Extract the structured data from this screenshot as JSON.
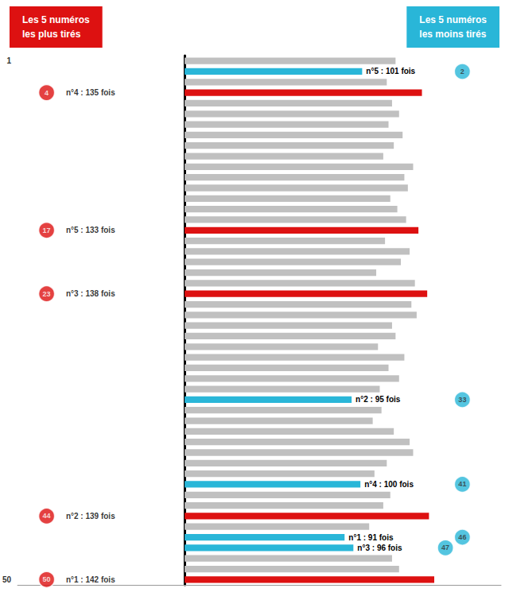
{
  "chart_data": {
    "type": "bar",
    "orientation": "horizontal",
    "categories": [
      "1",
      null,
      null,
      null,
      null,
      null,
      null,
      null,
      null,
      null,
      null,
      null,
      null,
      null,
      null,
      null,
      null,
      null,
      null,
      null,
      null,
      null,
      null,
      null,
      null,
      null,
      null,
      null,
      null,
      null,
      null,
      null,
      null,
      null,
      null,
      null,
      null,
      null,
      null,
      null,
      null,
      null,
      null,
      null,
      null,
      null,
      null,
      null,
      null,
      "50"
    ],
    "values": [
      120,
      101,
      115,
      135,
      118,
      122,
      116,
      124,
      119,
      113,
      130,
      125,
      127,
      117,
      121,
      126,
      133,
      114,
      128,
      123,
      109,
      131,
      138,
      129,
      132,
      118,
      120,
      110,
      125,
      116,
      122,
      111,
      95,
      112,
      107,
      119,
      128,
      130,
      115,
      108,
      100,
      117,
      113,
      139,
      105,
      91,
      96,
      118,
      122,
      142
    ],
    "colors": [
      "#c0c0c0",
      "#29b6d8",
      "#c0c0c0",
      "#dd1111",
      "#c0c0c0",
      "#c0c0c0",
      "#c0c0c0",
      "#c0c0c0",
      "#c0c0c0",
      "#c0c0c0",
      "#c0c0c0",
      "#c0c0c0",
      "#c0c0c0",
      "#c0c0c0",
      "#c0c0c0",
      "#c0c0c0",
      "#dd1111",
      "#c0c0c0",
      "#c0c0c0",
      "#c0c0c0",
      "#c0c0c0",
      "#c0c0c0",
      "#dd1111",
      "#c0c0c0",
      "#c0c0c0",
      "#c0c0c0",
      "#c0c0c0",
      "#c0c0c0",
      "#c0c0c0",
      "#c0c0c0",
      "#c0c0c0",
      "#c0c0c0",
      "#29b6d8",
      "#c0c0c0",
      "#c0c0c0",
      "#c0c0c0",
      "#c0c0c0",
      "#c0c0c0",
      "#c0c0c0",
      "#c0c0c0",
      "#29b6d8",
      "#c0c0c0",
      "#c0c0c0",
      "#dd1111",
      "#c0c0c0",
      "#29b6d8",
      "#29b6d8",
      "#c0c0c0",
      "#c0c0c0",
      "#dd1111"
    ],
    "xlim": [
      -95,
      180
    ],
    "tick_labels": "y",
    "grid": false,
    "annotations": [
      {
        "text": "Les 5 numéros\nles plus tirés",
        "color": "#dd1111",
        "items": [
          {
            "number": 50,
            "text": "n°1 : 142 fois"
          },
          {
            "number": 44,
            "text": "n°2 : 139 fois"
          },
          {
            "number": 23,
            "text": "n°3 : 138 fois"
          },
          {
            "number": 4,
            "text": "n°4 : 135 fois"
          },
          {
            "number": 17,
            "text": "n°5 : 133 fois"
          }
        ]
      },
      {
        "text": "Les 5 numéros\nles moins tirés",
        "color": "#29b6d8",
        "items": [
          {
            "number": 46,
            "text": "n°1 : 91 fois"
          },
          {
            "number": 33,
            "text": "n°2 : 95 fois"
          },
          {
            "number": 47,
            "text": "n°3 : 96 fois"
          },
          {
            "number": 41,
            "text": "n°4 : 100 fois"
          },
          {
            "number": 2,
            "text": "n°5 : 101 fois"
          }
        ]
      }
    ]
  }
}
